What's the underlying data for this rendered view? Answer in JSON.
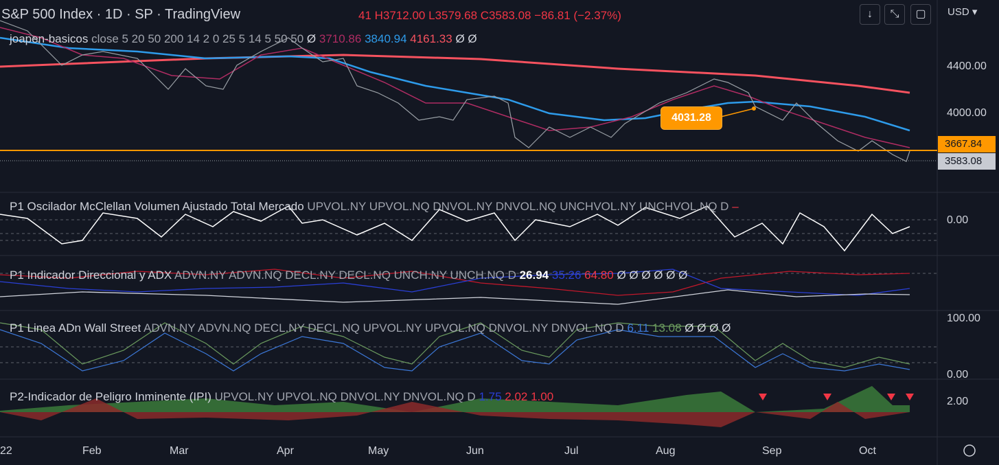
{
  "header": {
    "symbol": "S&P 500 Index",
    "interval": "1D",
    "exchange": "SP",
    "source": "TradingView",
    "open": "41",
    "high": "H3712.00",
    "low": "L3579.68",
    "close": "C3583.08",
    "change": "−86.81 (−2.37%)"
  },
  "currency": "USD",
  "main_indicator": {
    "name": "joapen-basicos",
    "params": "close 5 20 50 200 14 2 0 25 5 14 5 50 50",
    "lead": "Ø",
    "values": [
      "3710.86",
      "3840.94",
      "4161.33"
    ],
    "tail": "Ø Ø"
  },
  "price_axis": [
    "4400.00",
    "4000.00"
  ],
  "price_tags": {
    "level": "3667.84",
    "last": "3583.08"
  },
  "callout": "4031.28",
  "panes": [
    {
      "title": "P1 Oscilador McClellan Volumen Ajustado Total Mercado",
      "params": "UPVOL.NY UPVOL.NQ DNVOL.NY DNVOL.NQ UNCHVOL.NY UNCHVOL.NQ D",
      "values": [
        "–"
      ],
      "axis": [
        "0.00"
      ]
    },
    {
      "title": "P1 Indicador Direccional y ADX",
      "params": "ADVN.NY ADVN.NQ DECL.NY DECL.NQ UNCH.NY UNCH.NQ D",
      "values": [
        "26.94",
        "35.26",
        "64.80",
        "Ø Ø Ø Ø Ø Ø"
      ],
      "axis": []
    },
    {
      "title": "P1 Linea ADn Wall Street",
      "params": "ADVN.NY ADVN.NQ DECL.NY DECL.NQ UPVOL.NY UPVOL.NQ DNVOL.NY DNVOL.NQ D",
      "values": [
        "6.11",
        "13.08",
        "Ø Ø Ø Ø"
      ],
      "axis": [
        "100.00",
        "0.00"
      ]
    },
    {
      "title": "P2-Indicador de Peligro Inminente  (IPI)",
      "params": "UPVOL.NY UPVOL.NQ DNVOL.NY DNVOL.NQ D",
      "values": [
        "1.75",
        "2.02",
        "1.00"
      ],
      "axis": [
        "2.00"
      ]
    }
  ],
  "time_axis": [
    "22",
    "Feb",
    "Mar",
    "Apr",
    "May",
    "Jun",
    "Jul",
    "Aug",
    "Sep",
    "Oct"
  ]
}
